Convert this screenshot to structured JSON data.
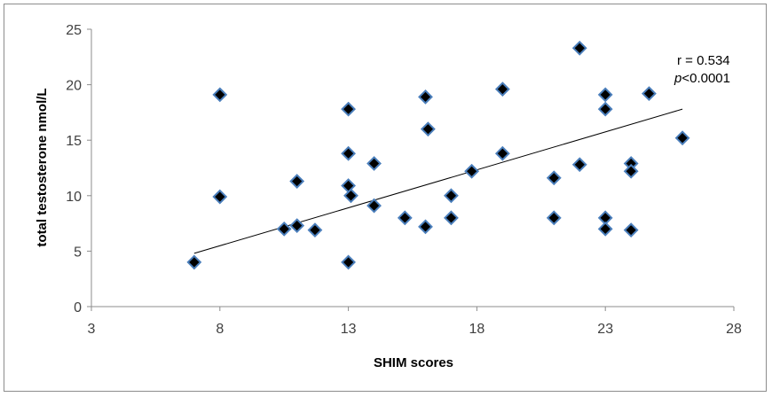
{
  "chart_data": {
    "type": "scatter",
    "title": "",
    "xlabel": "SHIM scores",
    "ylabel": "total testosterone nmol/L",
    "xlim": [
      3,
      28
    ],
    "ylim": [
      0,
      25
    ],
    "x_ticks": [
      3,
      8,
      13,
      18,
      23,
      28
    ],
    "y_ticks": [
      0,
      5,
      10,
      15,
      20,
      25
    ],
    "grid": false,
    "legend": "none",
    "marker": {
      "shape": "diamond",
      "fill": "#000000",
      "edge": "#4a7ebb"
    },
    "trendline": {
      "x": [
        7,
        26
      ],
      "y": [
        4.8,
        17.8
      ],
      "color": "#000000"
    },
    "annotations": {
      "r": "r = 0.534",
      "p_italic": "p",
      "p_rest": "<0.0001"
    },
    "series": [
      {
        "points": [
          [
            7,
            4
          ],
          [
            8,
            19.1
          ],
          [
            8,
            9.9
          ],
          [
            10.5,
            7
          ],
          [
            11,
            7.3
          ],
          [
            11,
            11.3
          ],
          [
            11.7,
            6.9
          ],
          [
            13,
            17.8
          ],
          [
            13,
            13.8
          ],
          [
            13,
            10.9
          ],
          [
            13.1,
            10
          ],
          [
            13,
            4
          ],
          [
            14,
            12.9
          ],
          [
            14,
            9.1
          ],
          [
            15.2,
            8
          ],
          [
            16,
            18.9
          ],
          [
            16.1,
            16
          ],
          [
            16,
            7.2
          ],
          [
            17,
            10
          ],
          [
            17,
            8
          ],
          [
            17.8,
            12.2
          ],
          [
            19,
            19.6
          ],
          [
            19,
            13.8
          ],
          [
            21,
            11.6
          ],
          [
            21,
            8
          ],
          [
            22,
            23.3
          ],
          [
            22,
            12.8
          ],
          [
            23,
            19.1
          ],
          [
            23,
            17.8
          ],
          [
            23,
            8
          ],
          [
            23,
            7
          ],
          [
            24,
            12.9
          ],
          [
            24,
            12.2
          ],
          [
            24,
            6.9
          ],
          [
            24.7,
            19.2
          ],
          [
            26,
            15.2
          ]
        ]
      }
    ]
  }
}
